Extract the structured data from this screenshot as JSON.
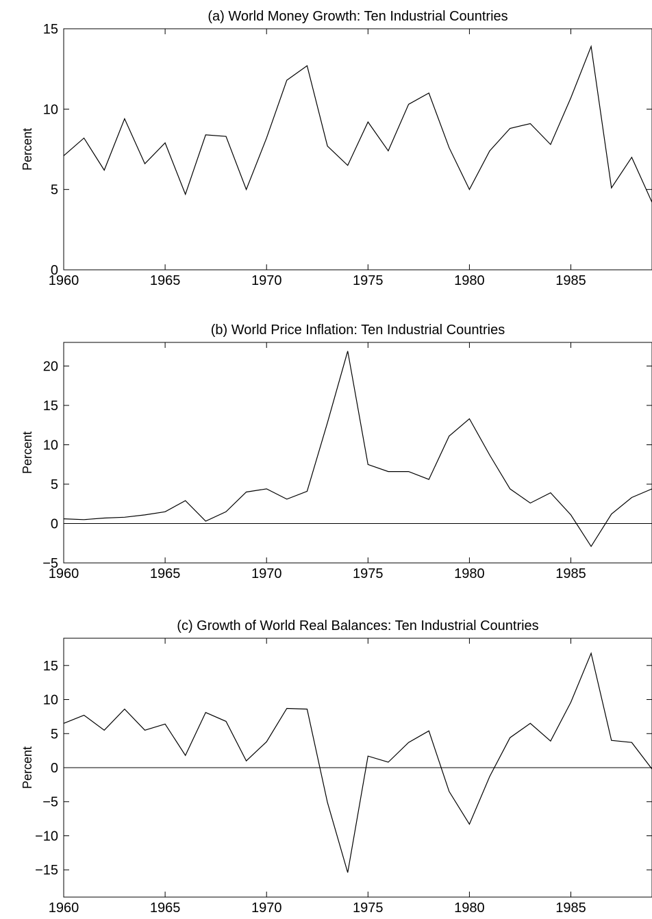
{
  "chart_data": [
    {
      "type": "line",
      "title": "(a) World Money Growth: Ten Industrial Countries",
      "xlabel": "",
      "ylabel": "Percent",
      "xlim": [
        1960,
        1989
      ],
      "ylim": [
        0,
        15
      ],
      "xticks": [
        1960,
        1965,
        1970,
        1975,
        1980,
        1985
      ],
      "yticks": [
        0,
        5,
        10,
        15
      ],
      "zero_line": false,
      "x": [
        1960,
        1961,
        1962,
        1963,
        1964,
        1965,
        1966,
        1967,
        1968,
        1969,
        1970,
        1971,
        1972,
        1973,
        1974,
        1975,
        1976,
        1977,
        1978,
        1979,
        1980,
        1981,
        1982,
        1983,
        1984,
        1985,
        1986,
        1987,
        1988,
        1989
      ],
      "values": [
        7.1,
        8.2,
        6.2,
        9.4,
        6.6,
        7.9,
        4.7,
        8.4,
        8.3,
        5.0,
        8.2,
        11.8,
        12.7,
        7.7,
        6.5,
        9.2,
        7.4,
        10.3,
        11.0,
        7.6,
        5.0,
        7.4,
        8.8,
        9.1,
        7.8,
        10.7,
        13.9,
        5.1,
        7.0,
        4.2
      ]
    },
    {
      "type": "line",
      "title": "(b) World Price Inflation: Ten Industrial Countries",
      "xlabel": "",
      "ylabel": "Percent",
      "xlim": [
        1960,
        1989
      ],
      "ylim": [
        -5,
        23
      ],
      "xticks": [
        1960,
        1965,
        1970,
        1975,
        1980,
        1985
      ],
      "yticks": [
        -5,
        0,
        5,
        10,
        15,
        20
      ],
      "zero_line": true,
      "x": [
        1960,
        1961,
        1962,
        1963,
        1964,
        1965,
        1966,
        1967,
        1968,
        1969,
        1970,
        1971,
        1972,
        1973,
        1974,
        1975,
        1976,
        1977,
        1978,
        1979,
        1980,
        1981,
        1982,
        1983,
        1984,
        1985,
        1986,
        1987,
        1988,
        1989
      ],
      "values": [
        0.6,
        0.5,
        0.7,
        0.8,
        1.1,
        1.5,
        2.9,
        0.3,
        1.5,
        4.0,
        4.4,
        3.1,
        4.1,
        12.8,
        21.9,
        7.5,
        6.6,
        6.6,
        5.6,
        11.1,
        13.3,
        8.7,
        4.4,
        2.6,
        3.9,
        1.1,
        -2.9,
        1.2,
        3.3,
        4.4
      ]
    },
    {
      "type": "line",
      "title": "(c) Growth of World Real Balances: Ten Industrial Countries",
      "xlabel": "",
      "ylabel": "Percent",
      "xlim": [
        1960,
        1989
      ],
      "ylim": [
        -19,
        19
      ],
      "xticks": [
        1960,
        1965,
        1970,
        1975,
        1980,
        1985
      ],
      "yticks": [
        -15,
        -10,
        -5,
        0,
        5,
        10,
        15
      ],
      "zero_line": true,
      "x": [
        1960,
        1961,
        1962,
        1963,
        1964,
        1965,
        1966,
        1967,
        1968,
        1969,
        1970,
        1971,
        1972,
        1973,
        1974,
        1975,
        1976,
        1977,
        1978,
        1979,
        1980,
        1981,
        1982,
        1983,
        1984,
        1985,
        1986,
        1987,
        1988,
        1989
      ],
      "values": [
        6.5,
        7.7,
        5.5,
        8.6,
        5.5,
        6.4,
        1.8,
        8.1,
        6.8,
        1.0,
        3.8,
        8.7,
        8.6,
        -5.1,
        -15.4,
        1.7,
        0.8,
        3.7,
        5.4,
        -3.5,
        -8.3,
        -1.3,
        4.4,
        6.5,
        3.9,
        9.6,
        16.8,
        4.0,
        3.7,
        -0.2
      ]
    }
  ]
}
